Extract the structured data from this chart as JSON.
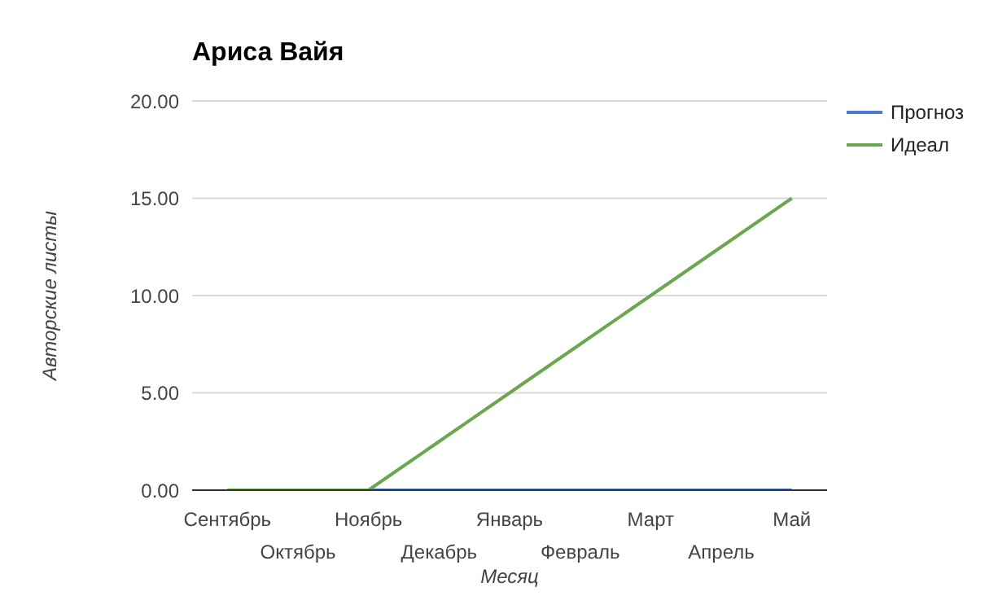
{
  "chart_data": {
    "type": "line",
    "title": "Ариса Вайя",
    "xlabel": "Месяц",
    "ylabel": "Авторские листы",
    "categories": [
      "Сентябрь",
      "Октябрь",
      "Ноябрь",
      "Декабрь",
      "Январь",
      "Февраль",
      "Март",
      "Апрель",
      "Май"
    ],
    "series": [
      {
        "name": "Прогноз",
        "color": "#4a7bd6",
        "values": [
          0,
          0,
          0,
          0,
          0,
          0,
          0,
          0,
          0
        ]
      },
      {
        "name": "Идеал",
        "color": "#6aa84f",
        "values": [
          0,
          0,
          0,
          2.5,
          5,
          7.5,
          10,
          12.5,
          15
        ]
      }
    ],
    "ylim": [
      0,
      20
    ],
    "yticks": [
      {
        "value": 0,
        "label": "0.00"
      },
      {
        "value": 5,
        "label": "5.00"
      },
      {
        "value": 10,
        "label": "10.00"
      },
      {
        "value": 15,
        "label": "15.00"
      },
      {
        "value": 20,
        "label": "20.00"
      }
    ],
    "grid": "y",
    "legend": "top right",
    "marker": "none",
    "line_style": "solid"
  }
}
